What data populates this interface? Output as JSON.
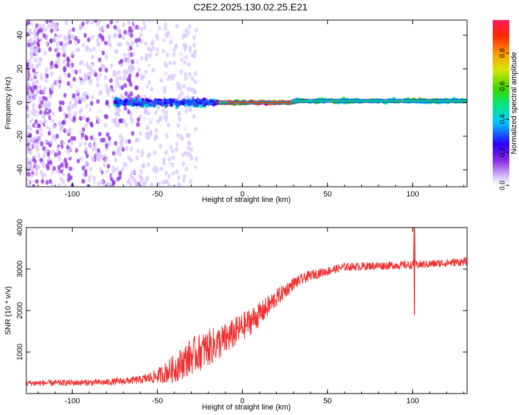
{
  "title": "C2E2.2025.130.02.25.E21",
  "chart_data": [
    {
      "type": "heatmap",
      "xlabel": "Height of straight line (km)",
      "ylabel": "Frequency (Hz)",
      "xlim": [
        -127,
        132
      ],
      "ylim": [
        -50,
        49
      ],
      "xticks": [
        -100,
        -50,
        0,
        50,
        100
      ],
      "yticks": [
        -40,
        -20,
        0,
        20,
        40
      ],
      "colorbar": {
        "label": "Normalized spectral amplitude",
        "range": [
          0,
          1
        ],
        "ticks": [
          "0.0",
          "0.2",
          "0.4",
          "0.6",
          "0.8"
        ],
        "colormap": [
          "#ffffff",
          "#d9c7ff",
          "#8b2be2",
          "#2a00ff",
          "#00c8ff",
          "#00e68a",
          "#3bd400",
          "#d8e600",
          "#ff9900",
          "#ff2a00",
          "#ff1a5a"
        ]
      },
      "features": [
        {
          "x_range": [
            -127,
            -30
          ],
          "freq_range": [
            -50,
            49
          ],
          "amplitude": 0.1,
          "note": "broadband noise"
        },
        {
          "x_range": [
            -75,
            -15
          ],
          "center_freq": 0,
          "amplitude": 0.45
        },
        {
          "x_range": [
            -15,
            30
          ],
          "center_freq": 0,
          "amplitude": 0.9
        },
        {
          "x_range": [
            30,
            132
          ],
          "center_freq": 1,
          "amplitude": 0.6
        }
      ]
    },
    {
      "type": "line",
      "xlabel": "Height of straight line (km)",
      "ylabel": "SNR (10 * v/v)",
      "xlim": [
        -127,
        132
      ],
      "ylim": [
        0,
        4000
      ],
      "xticks": [
        -100,
        -50,
        0,
        50,
        100
      ],
      "yticks": [
        1000,
        2000,
        3000,
        4000
      ],
      "series": [
        {
          "color": "#f03030",
          "x": [
            -127,
            -100,
            -80,
            -60,
            -50,
            -40,
            -30,
            -20,
            -10,
            0,
            10,
            20,
            30,
            40,
            50,
            60,
            80,
            100,
            110,
            120,
            132
          ],
          "y_mean": [
            250,
            260,
            270,
            330,
            420,
            600,
            900,
            1100,
            1300,
            1600,
            1900,
            2300,
            2650,
            2850,
            2950,
            3050,
            3080,
            3100,
            3120,
            3150,
            3180
          ],
          "y_amp": [
            150,
            150,
            160,
            200,
            350,
            700,
            900,
            900,
            800,
            700,
            600,
            450,
            300,
            250,
            220,
            200,
            200,
            200,
            200,
            200,
            200
          ]
        }
      ]
    }
  ]
}
